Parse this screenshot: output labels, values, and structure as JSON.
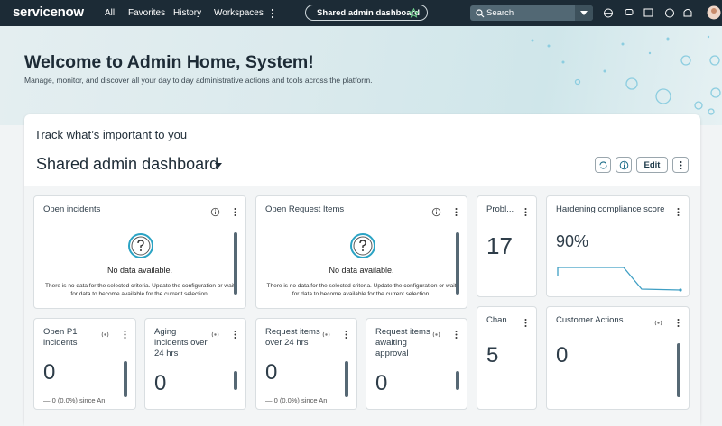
{
  "nav": {
    "logo": "servicenow",
    "items": [
      "All",
      "Favorites",
      "History",
      "Workspaces"
    ],
    "pill": "Shared admin dashboard",
    "search": "Search"
  },
  "hero": {
    "title": "Welcome to Admin Home, System!",
    "subtitle": "Manage, monitor, and discover all your day to day administrative actions and tools across the platform."
  },
  "dashboard": {
    "heading": "Track what’s important to you",
    "name": "Shared admin dashboard",
    "edit": "Edit"
  },
  "widgets": [
    {
      "title": "Open incidents",
      "message": "No data available.",
      "detail": "There is no data for the selected criteria. Update the configuration or wait for data to become available for the current selection."
    },
    {
      "title": "Open Request Items",
      "message": "No data available.",
      "detail": "There is no data for the selected criteria. Update the configuration or wait for data to become available for the current selection."
    },
    {
      "title": "Probl...",
      "value": 17
    },
    {
      "title": "Hardening compliance score",
      "value": "90%"
    },
    {
      "title": "Open P1 incidents",
      "value": 0,
      "change": "— 0 (0.0%) since An"
    },
    {
      "title": "Aging incidents over 24 hrs",
      "value": 0
    },
    {
      "title": "Request items over 24 hrs",
      "value": 0,
      "change": "— 0 (0.0%) since An"
    },
    {
      "title": "Request items awaiting approval",
      "value": 0
    },
    {
      "title": "Chan...",
      "value": 5
    },
    {
      "title": "Customer Actions",
      "value": 0
    }
  ]
}
